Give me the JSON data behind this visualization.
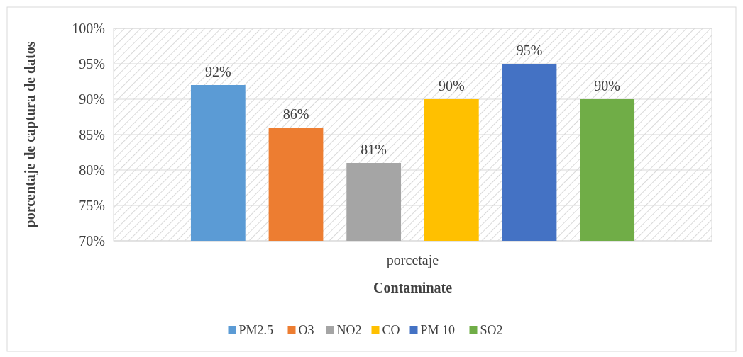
{
  "chart_data": {
    "type": "bar",
    "xlabel": "Contaminate",
    "ylabel": "porcentaje de captura de datos",
    "categories": [
      "porcetaje"
    ],
    "series": [
      {
        "name": "PM2.5",
        "color": "#5b9bd5",
        "values": [
          92
        ],
        "value_labels": [
          "92%"
        ]
      },
      {
        "name": "O3",
        "color": "#ed7d31",
        "values": [
          86
        ],
        "value_labels": [
          "86%"
        ]
      },
      {
        "name": "NO2",
        "color": "#a5a5a5",
        "values": [
          81
        ],
        "value_labels": [
          "81%"
        ]
      },
      {
        "name": "CO",
        "color": "#ffc000",
        "values": [
          90
        ],
        "value_labels": [
          "90%"
        ]
      },
      {
        "name": "PM 10",
        "color": "#4472c4",
        "values": [
          95
        ],
        "value_labels": [
          "95%"
        ]
      },
      {
        "name": "SO2",
        "color": "#70ad47",
        "values": [
          90
        ],
        "value_labels": [
          "90%"
        ]
      }
    ],
    "ylim": [
      70,
      100
    ],
    "yticks": [
      {
        "value": 70,
        "label": "70%"
      },
      {
        "value": 75,
        "label": "75%"
      },
      {
        "value": 80,
        "label": "80%"
      },
      {
        "value": 85,
        "label": "85%"
      },
      {
        "value": 90,
        "label": "90%"
      },
      {
        "value": 95,
        "label": "95%"
      },
      {
        "value": 100,
        "label": "100%"
      }
    ],
    "grid": "y",
    "legend": "bottom"
  }
}
